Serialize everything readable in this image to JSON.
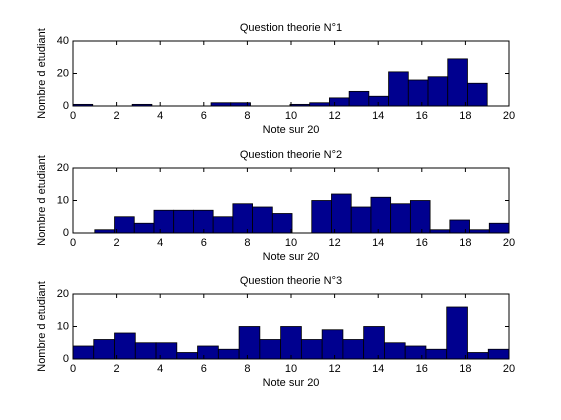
{
  "chart_data": [
    {
      "type": "histogram",
      "title": "Question theorie N°1",
      "xlabel": "Note sur 20",
      "ylabel": "Nombre d etudiant",
      "bins": [
        0,
        0.905,
        1.81,
        2.714,
        3.619,
        4.524,
        5.429,
        6.333,
        7.238,
        8.143,
        9.048,
        9.952,
        10.857,
        11.762,
        12.667,
        13.571,
        14.476,
        15.381,
        16.286,
        17.19,
        18.095,
        19
      ],
      "values": [
        1,
        0,
        0,
        1,
        0,
        0,
        0,
        2,
        2,
        0,
        0,
        1,
        2,
        5,
        9,
        6,
        21,
        16,
        18,
        29,
        14
      ],
      "color": "#00008f",
      "xlim": [
        0,
        20
      ],
      "ylim": [
        0,
        40
      ],
      "xticks": [
        0,
        2,
        4,
        6,
        8,
        10,
        12,
        14,
        16,
        18,
        20
      ],
      "yticks": [
        0,
        20,
        40
      ]
    },
    {
      "type": "histogram",
      "title": "Question theorie N°2",
      "xlabel": "Note sur 20",
      "ylabel": "Nombre d etudiant",
      "bins": [
        1,
        1.905,
        2.81,
        3.714,
        4.619,
        5.524,
        6.429,
        7.333,
        8.238,
        9.143,
        10.048,
        10.952,
        11.857,
        12.762,
        13.667,
        14.571,
        15.476,
        16.381,
        17.286,
        18.19,
        19.095,
        20
      ],
      "values": [
        1,
        5,
        3,
        7,
        7,
        7,
        5,
        9,
        8,
        6,
        0,
        10,
        12,
        8,
        11,
        9,
        10,
        1,
        4,
        1,
        3
      ],
      "color": "#00008f",
      "xlim": [
        0,
        20
      ],
      "ylim": [
        0,
        20
      ],
      "xticks": [
        0,
        2,
        4,
        6,
        8,
        10,
        12,
        14,
        16,
        18,
        20
      ],
      "yticks": [
        0,
        10,
        20
      ]
    },
    {
      "type": "histogram",
      "title": "Question theorie N°3",
      "xlabel": "Note sur 20",
      "ylabel": "Nombre d etudiant",
      "bins": [
        0,
        0.952,
        1.905,
        2.857,
        3.81,
        4.762,
        5.714,
        6.667,
        7.619,
        8.571,
        9.524,
        10.476,
        11.429,
        12.381,
        13.333,
        14.286,
        15.238,
        16.19,
        17.143,
        18.095,
        19.048,
        20
      ],
      "values": [
        4,
        6,
        8,
        5,
        5,
        2,
        4,
        3,
        10,
        6,
        10,
        6,
        9,
        6,
        10,
        5,
        4,
        3,
        16,
        2,
        3
      ],
      "color": "#00008f",
      "xlim": [
        0,
        20
      ],
      "ylim": [
        0,
        20
      ],
      "xticks": [
        0,
        2,
        4,
        6,
        8,
        10,
        12,
        14,
        16,
        18,
        20
      ],
      "yticks": [
        0,
        10,
        20
      ]
    }
  ]
}
